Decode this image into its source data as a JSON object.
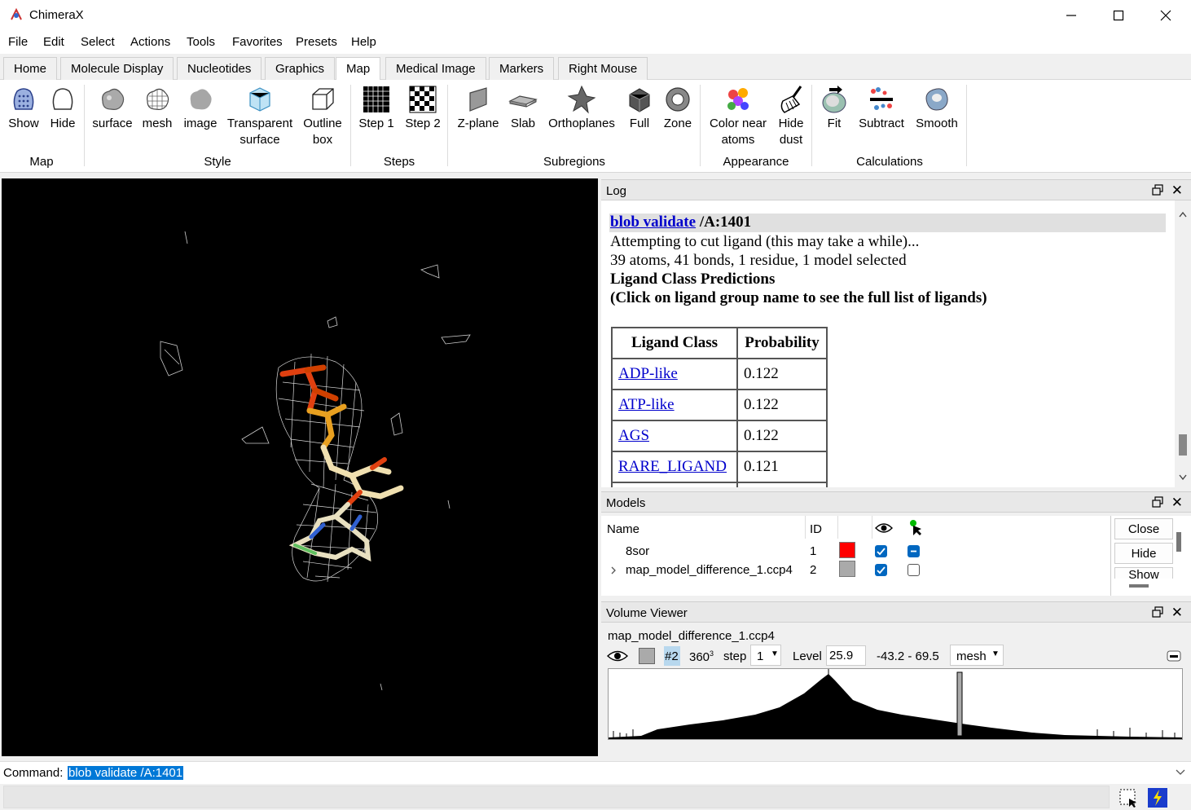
{
  "window": {
    "title": "ChimeraX"
  },
  "menubar": {
    "items": [
      "File",
      "Edit",
      "Select",
      "Actions",
      "Tools",
      "Favorites",
      "Presets",
      "Help"
    ]
  },
  "tabs": [
    "Home",
    "Molecule Display",
    "Nucleotides",
    "Graphics",
    "Map",
    "Medical Image",
    "Markers",
    "Right Mouse"
  ],
  "active_tab": "Map",
  "ribbon": {
    "buttons": [
      {
        "id": "show",
        "label": "Show"
      },
      {
        "id": "hide",
        "label": "Hide"
      },
      {
        "id": "surface",
        "label": "surface"
      },
      {
        "id": "mesh",
        "label": "mesh"
      },
      {
        "id": "image",
        "label": "image"
      },
      {
        "id": "transparent",
        "label": "Transparent",
        "label2": "surface"
      },
      {
        "id": "outline",
        "label": "Outline",
        "label2": "box"
      },
      {
        "id": "step1",
        "label": "Step 1"
      },
      {
        "id": "step2",
        "label": "Step 2"
      },
      {
        "id": "zplane",
        "label": "Z-plane"
      },
      {
        "id": "slab",
        "label": "Slab"
      },
      {
        "id": "orthoplanes",
        "label": "Orthoplanes"
      },
      {
        "id": "full",
        "label": "Full"
      },
      {
        "id": "zone",
        "label": "Zone"
      },
      {
        "id": "colornear",
        "label": "Color near",
        "label2": "atoms"
      },
      {
        "id": "hidedust",
        "label": "Hide",
        "label2": "dust"
      },
      {
        "id": "fit",
        "label": "Fit"
      },
      {
        "id": "subtract",
        "label": "Subtract"
      },
      {
        "id": "smooth",
        "label": "Smooth"
      }
    ],
    "groups": [
      "Map",
      "Style",
      "Steps",
      "Subregions",
      "Appearance",
      "Calculations"
    ]
  },
  "log": {
    "title": "Log",
    "command_link": "blob validate",
    "command_rest": " /A:1401",
    "lines": [
      "Attempting to cut ligand (this may take a while)...",
      "39 atoms, 41 bonds, 1 residue, 1 model selected"
    ],
    "heading1": "Ligand Class Predictions",
    "heading2": "(Click on ligand group name to see the full list of ligands)",
    "table": {
      "headers": [
        "Ligand Class",
        "Probability"
      ],
      "rows": [
        {
          "name": "ADP-like",
          "prob": "0.122"
        },
        {
          "name": "ATP-like",
          "prob": "0.122"
        },
        {
          "name": "AGS",
          "prob": "0.122"
        },
        {
          "name": "RARE_LIGAND",
          "prob": "0.121"
        }
      ]
    }
  },
  "models": {
    "title": "Models",
    "headers": {
      "name": "Name",
      "id": "ID"
    },
    "rows": [
      {
        "name": "8sor",
        "id": "1",
        "color": "#ff0000"
      },
      {
        "name": "map_model_difference_1.ccp4",
        "id": "2",
        "color": "#aaaaaa"
      }
    ],
    "buttons": [
      "Close",
      "Hide",
      "Show"
    ]
  },
  "volume_viewer": {
    "title": "Volume Viewer",
    "map_name": "map_model_difference_1.ccp4",
    "model_id": "#2",
    "size": "360",
    "size_exp": "3",
    "step_label": "step",
    "step_value": "1",
    "level_label": "Level",
    "level_value": "25.9",
    "range": "-43.2 - 69.5",
    "style": "mesh"
  },
  "command": {
    "label": "Command:",
    "value": "blob validate /A:1401"
  }
}
